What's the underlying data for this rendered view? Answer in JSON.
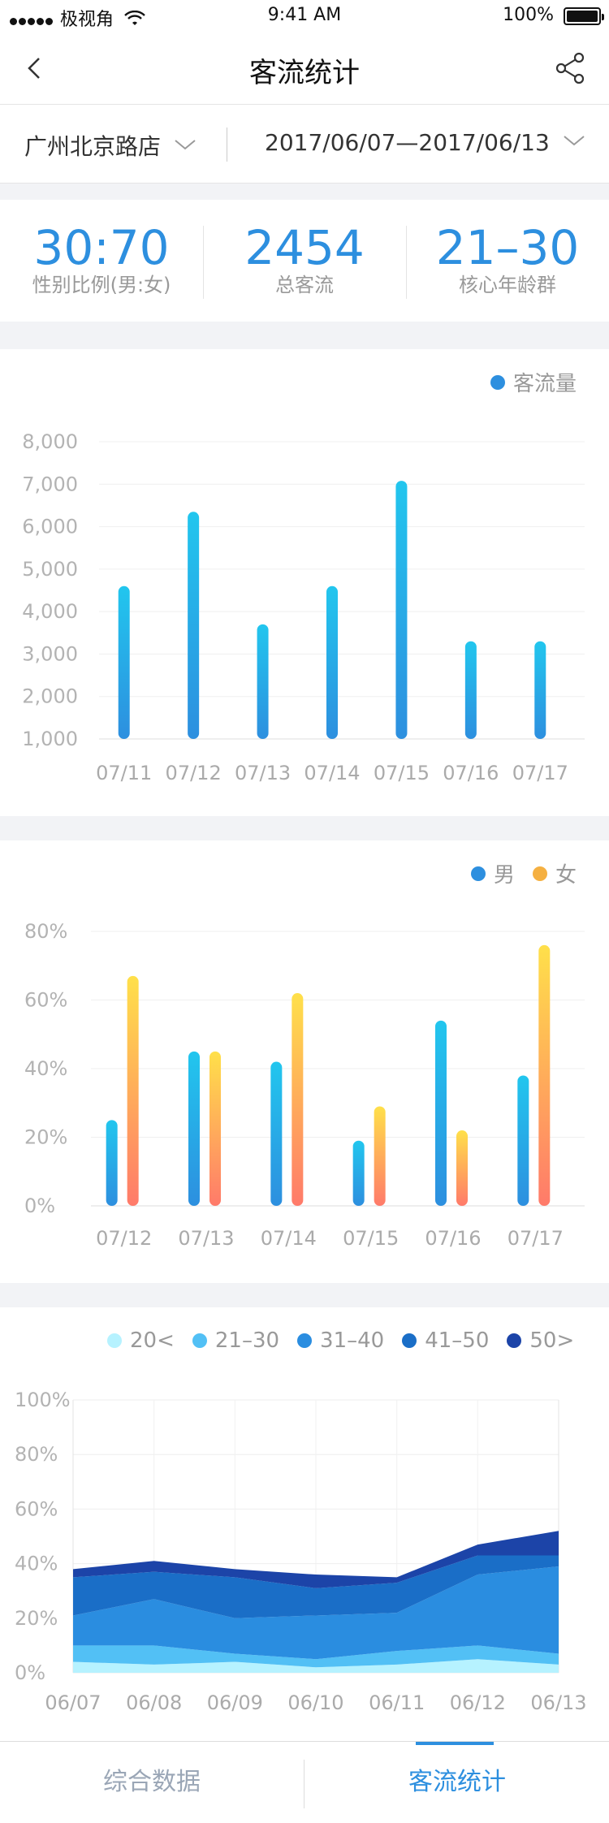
{
  "status_bar": {
    "carrier": "极视角",
    "time": "9:41 AM",
    "battery": "100%"
  },
  "nav": {
    "title": "客流统计",
    "back_icon": "chevron-left-icon",
    "share_icon": "share-icon"
  },
  "filters": {
    "store": "广州北京路店",
    "date_range": "2017/06/07—2017/06/13"
  },
  "summary": [
    {
      "value": "30:70",
      "label": "性别比例(男:女)"
    },
    {
      "value": "2454",
      "label": "总客流"
    },
    {
      "value": "21–30",
      "label": "核心年龄群"
    }
  ],
  "colors": {
    "accent": "#2d8fdf",
    "male": "#2d8fdf",
    "female": "#f5b041",
    "tab_inactive": "#9aa6b6"
  },
  "chart_data": [
    {
      "type": "bar",
      "categories": [
        "07/11",
        "07/12",
        "07/13",
        "07/14",
        "07/15",
        "07/16",
        "07/17"
      ],
      "series": [
        {
          "name": "客流量",
          "values": [
            4600,
            6350,
            3700,
            4600,
            7080,
            3300,
            3300
          ]
        }
      ],
      "yticks": [
        "1,000",
        "2,000",
        "3,000",
        "4,000",
        "5,000",
        "6,000",
        "7,000",
        "8,000"
      ],
      "ylim": [
        1000,
        8000
      ],
      "legend": "top-right"
    },
    {
      "type": "bar",
      "categories": [
        "07/12",
        "07/13",
        "07/14",
        "07/15",
        "07/16",
        "07/17"
      ],
      "series": [
        {
          "name": "男",
          "values": [
            25,
            45,
            42,
            19,
            54,
            38
          ]
        },
        {
          "name": "女",
          "values": [
            67,
            45,
            62,
            29,
            22,
            76
          ]
        }
      ],
      "yticks": [
        "0%",
        "20%",
        "40%",
        "60%",
        "80%"
      ],
      "ylim": [
        0,
        80
      ],
      "legend": "top-right"
    },
    {
      "type": "area",
      "categories": [
        "06/07",
        "06/08",
        "06/09",
        "06/10",
        "06/11",
        "06/12",
        "06/13"
      ],
      "series": [
        {
          "name": "20<",
          "values": [
            4,
            3,
            4,
            2,
            3,
            5,
            3
          ]
        },
        {
          "name": "21–30",
          "values": [
            6,
            7,
            3,
            3,
            5,
            5,
            4
          ]
        },
        {
          "name": "31–40",
          "values": [
            11,
            17,
            13,
            16,
            14,
            26,
            32
          ]
        },
        {
          "name": "41–50",
          "values": [
            14,
            10,
            15,
            10,
            11,
            7,
            4
          ]
        },
        {
          "name": "50>",
          "values": [
            3,
            4,
            3,
            5,
            2,
            4,
            9
          ]
        }
      ],
      "yticks": [
        "0%",
        "20%",
        "40%",
        "60%",
        "80%",
        "100%"
      ],
      "ylim": [
        0,
        100
      ],
      "stacked": true,
      "legend": "top"
    }
  ],
  "tabs": [
    {
      "label": "综合数据"
    },
    {
      "label": "客流统计"
    }
  ]
}
